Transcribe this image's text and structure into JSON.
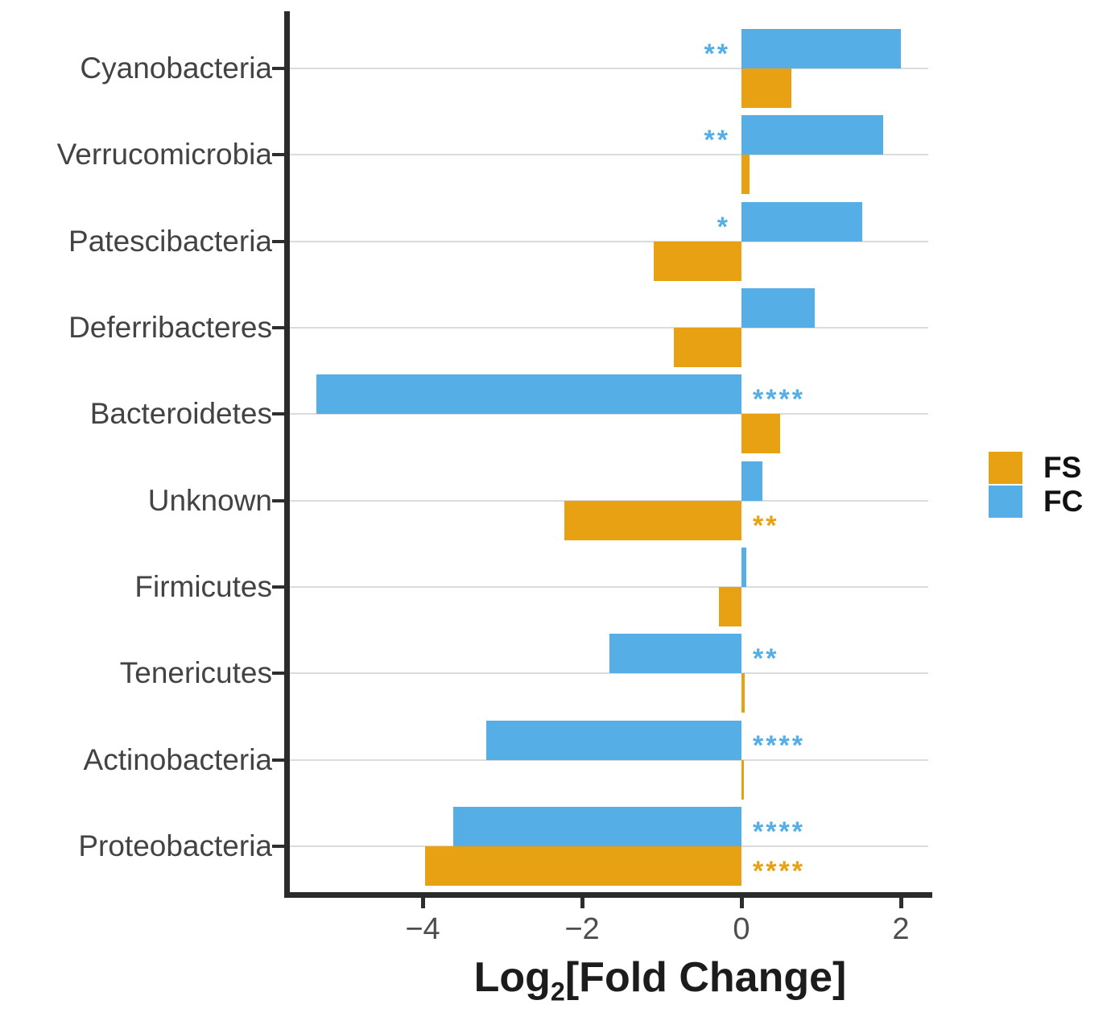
{
  "chart_data": {
    "type": "bar",
    "orientation": "horizontal",
    "title": "",
    "xlabel": "Log2[Fold Change]",
    "xlabel_parts": {
      "prefix": "Log",
      "sub": "2",
      "suffix": "[Fold Change]"
    },
    "ylabel": "",
    "categories": [
      "Cyanobacteria",
      "Verrucomicrobia",
      "Patescibacteria",
      "Deferribacteres",
      "Bacteroidetes",
      "Unknown",
      "Firmicutes",
      "Tenericutes",
      "Actinobacteria",
      "Proteobacteria"
    ],
    "series": [
      {
        "name": "FC",
        "color": "#55AEE5",
        "row_position": "above-gridline",
        "values": [
          2.0,
          1.78,
          1.52,
          0.92,
          -5.33,
          0.26,
          0.06,
          -1.66,
          -3.2,
          -3.62
        ],
        "significance": [
          "**",
          "**",
          "*",
          "",
          "****",
          "",
          "",
          "**",
          "****",
          "****"
        ]
      },
      {
        "name": "FS",
        "color": "#E7A112",
        "row_position": "below-gridline",
        "values": [
          0.63,
          0.1,
          -1.1,
          -0.85,
          0.48,
          -2.22,
          -0.28,
          0.04,
          0.03,
          -3.97
        ],
        "significance": [
          "",
          "",
          "",
          "",
          "",
          "**",
          "",
          "",
          "",
          "****"
        ]
      }
    ],
    "x_ticks": [
      {
        "value": -4,
        "label": "−4"
      },
      {
        "value": -2,
        "label": "−2"
      },
      {
        "value": 0,
        "label": "0"
      },
      {
        "value": 2,
        "label": "2"
      }
    ],
    "xlim": [
      -5.75,
      2.35
    ],
    "grid": "horizontal-only",
    "legend": {
      "position": "right",
      "entries": [
        {
          "label": "FS",
          "color": "#E7A112"
        },
        {
          "label": "FC",
          "color": "#55AEE5"
        }
      ]
    },
    "colors": {
      "axis": "#2b2b2b",
      "gridline": "#dcdcdc",
      "tick_label": "#4d4d4d",
      "category_label": "#434343",
      "axis_title": "#1c1c1c"
    }
  }
}
